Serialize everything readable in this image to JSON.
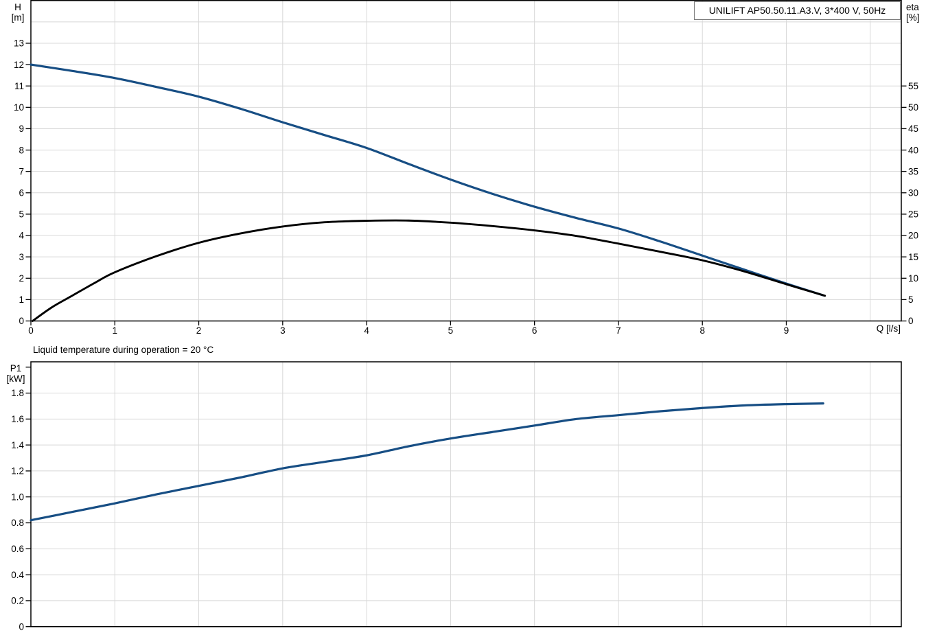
{
  "colors": {
    "curve_blue": "#174E84",
    "curve_black": "#000000",
    "grid": "#D8D8D8",
    "axis": "#000000",
    "legend_border": "#7B7B7B",
    "background": "#FFFFFF"
  },
  "chart_data": [
    {
      "type": "line",
      "legend": "UNILIFT AP50.50.11.A3.V, 3*400 V, 50Hz",
      "x_axis": {
        "label": "Q [l/s]",
        "min": 0,
        "max": 10.37,
        "tick_values": [
          0,
          1,
          2,
          3,
          4,
          5,
          6,
          7,
          8,
          9
        ],
        "tick_labels": [
          "0",
          "1",
          "2",
          "3",
          "4",
          "5",
          "6",
          "7",
          "8",
          "9"
        ],
        "gridline_values": [
          1,
          2,
          3,
          4,
          5,
          6,
          7,
          8,
          9,
          10
        ]
      },
      "y_left": {
        "label_line1": "H",
        "label_line2": "[m]",
        "min": 0,
        "max": 15,
        "tick_values": [
          0,
          1,
          2,
          3,
          4,
          5,
          6,
          7,
          8,
          9,
          10,
          11,
          12,
          13
        ],
        "tick_labels": [
          "0",
          "1",
          "2",
          "3",
          "4",
          "5",
          "6",
          "7",
          "8",
          "9",
          "10",
          "11",
          "12",
          "13"
        ],
        "gridline_values": [
          1,
          2,
          3,
          4,
          5,
          6,
          7,
          8,
          9,
          10,
          11,
          12,
          13,
          14
        ]
      },
      "y_right": {
        "label_line1": "eta",
        "label_line2": "[%]",
        "min": 0,
        "max": 75,
        "tick_values": [
          0,
          5,
          10,
          15,
          20,
          25,
          30,
          35,
          40,
          45,
          50,
          55
        ],
        "tick_labels": [
          "0",
          "5",
          "10",
          "15",
          "20",
          "25",
          "30",
          "35",
          "40",
          "45",
          "50",
          "55"
        ]
      },
      "series": [
        {
          "name": "head-curve",
          "color_key": "curve_blue",
          "axis": "left",
          "points": [
            [
              0,
              12.0
            ],
            [
              0.5,
              11.7
            ],
            [
              1,
              11.37
            ],
            [
              1.5,
              10.95
            ],
            [
              2,
              10.5
            ],
            [
              2.5,
              9.93
            ],
            [
              3,
              9.3
            ],
            [
              3.5,
              8.7
            ],
            [
              4,
              8.1
            ],
            [
              4.5,
              7.35
            ],
            [
              5,
              6.62
            ],
            [
              5.5,
              5.95
            ],
            [
              6,
              5.35
            ],
            [
              6.5,
              4.82
            ],
            [
              7,
              4.33
            ],
            [
              7.5,
              3.72
            ],
            [
              8,
              3.06
            ],
            [
              8.5,
              2.4
            ],
            [
              9,
              1.75
            ],
            [
              9.44,
              1.2
            ]
          ]
        },
        {
          "name": "efficiency-curve",
          "color_key": "curve_black",
          "axis": "right",
          "points": [
            [
              0.02,
              0
            ],
            [
              0.25,
              3.2
            ],
            [
              0.5,
              6.0
            ],
            [
              0.75,
              8.8
            ],
            [
              1,
              11.4
            ],
            [
              1.5,
              15.2
            ],
            [
              2,
              18.3
            ],
            [
              2.5,
              20.5
            ],
            [
              3,
              22.1
            ],
            [
              3.5,
              23.1
            ],
            [
              4,
              23.45
            ],
            [
              4.5,
              23.5
            ],
            [
              5,
              23.0
            ],
            [
              5.5,
              22.2
            ],
            [
              6,
              21.2
            ],
            [
              6.5,
              19.9
            ],
            [
              7,
              18.1
            ],
            [
              7.5,
              16.2
            ],
            [
              8,
              14.2
            ],
            [
              8.5,
              11.6
            ],
            [
              9,
              8.6
            ],
            [
              9.46,
              5.9
            ]
          ]
        }
      ]
    },
    {
      "type": "line",
      "note": "Liquid temperature during operation = 20 °C",
      "x_axis": {
        "min": 0,
        "max": 10.37,
        "tick_values": [],
        "tick_labels": [],
        "gridline_values": [
          1,
          2,
          3,
          4,
          5,
          6,
          7,
          8,
          9,
          10
        ]
      },
      "y_left": {
        "label_line1": "P1",
        "label_line2": "[kW]",
        "min": 0,
        "max": 2.041,
        "tick_values": [
          0,
          0.2,
          0.4,
          0.6,
          0.8,
          1.0,
          1.2,
          1.4,
          1.6,
          1.8,
          2.0
        ],
        "tick_labels": [
          "0",
          "0.2",
          "0.4",
          "0.6",
          "0.8",
          "1.0",
          "1.2",
          "1.4",
          "1.6",
          "1.8",
          ""
        ],
        "gridline_values": [
          0.2,
          0.4,
          0.6,
          0.8,
          1.0,
          1.2,
          1.4,
          1.6,
          1.8
        ]
      },
      "series": [
        {
          "name": "power-curve",
          "color_key": "curve_blue",
          "axis": "left",
          "points": [
            [
              0,
              0.82
            ],
            [
              0.5,
              0.885
            ],
            [
              1,
              0.95
            ],
            [
              1.5,
              1.02
            ],
            [
              2,
              1.085
            ],
            [
              2.5,
              1.15
            ],
            [
              3,
              1.22
            ],
            [
              3.5,
              1.27
            ],
            [
              4,
              1.32
            ],
            [
              4.5,
              1.39
            ],
            [
              5,
              1.45
            ],
            [
              5.5,
              1.5
            ],
            [
              6,
              1.55
            ],
            [
              6.5,
              1.6
            ],
            [
              7,
              1.63
            ],
            [
              7.5,
              1.66
            ],
            [
              8,
              1.685
            ],
            [
              8.5,
              1.705
            ],
            [
              9,
              1.715
            ],
            [
              9.44,
              1.72
            ]
          ]
        }
      ]
    }
  ]
}
